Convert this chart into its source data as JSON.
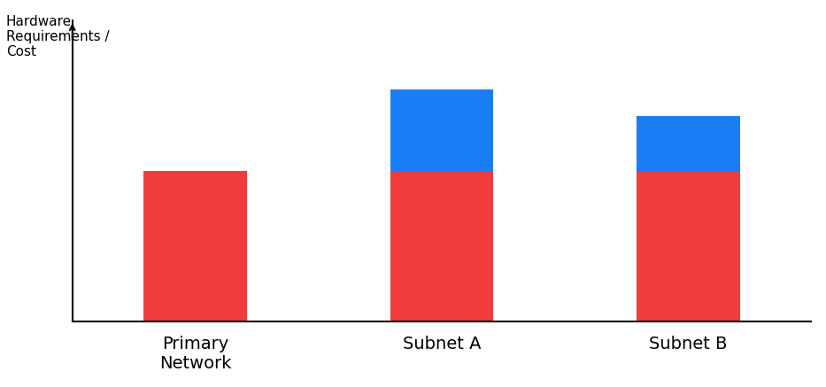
{
  "categories": [
    "Primary\nNetwork",
    "Subnet A",
    "Subnet B"
  ],
  "red_values": [
    5.5,
    5.5,
    5.5
  ],
  "blue_values": [
    0,
    3.0,
    2.0
  ],
  "red_color": "#f03c3c",
  "blue_color": "#1a7df5",
  "ylabel": "Hardware\nRequirements /\nCost",
  "background_color": "#ffffff",
  "ylim": [
    0,
    11
  ],
  "bar_width": 0.42,
  "xlabel_fontsize": 14,
  "ylabel_fontsize": 11,
  "x_positions": [
    0,
    1,
    2
  ]
}
